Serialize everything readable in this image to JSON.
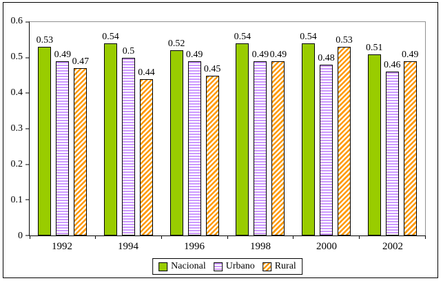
{
  "chart_data": {
    "type": "bar",
    "title": "",
    "xlabel": "",
    "ylabel": "",
    "categories": [
      "1992",
      "1994",
      "1996",
      "1998",
      "2000",
      "2002"
    ],
    "series": [
      {
        "name": "Nacional",
        "pattern": "solid",
        "color": "#99CC00",
        "values": [
          0.53,
          0.54,
          0.52,
          0.54,
          0.54,
          0.51
        ],
        "labels": [
          "0.53",
          "0.54",
          "0.52",
          "0.54",
          "0.54",
          "0.51"
        ]
      },
      {
        "name": "Urbano",
        "pattern": "horizontal-stripes",
        "color": "#CC99FF",
        "values": [
          0.49,
          0.5,
          0.49,
          0.49,
          0.48,
          0.46
        ],
        "labels": [
          "0.49",
          "0.5",
          "0.49",
          "0.49",
          "0.48",
          "0.46"
        ]
      },
      {
        "name": "Rural",
        "pattern": "diagonal-stripes",
        "color": "#FF9900",
        "values": [
          0.47,
          0.44,
          0.45,
          0.49,
          0.53,
          0.49
        ],
        "labels": [
          "0.47",
          "0.44",
          "0.45",
          "0.49",
          "0.53",
          "0.49"
        ]
      }
    ],
    "ylim": [
      0,
      0.6
    ],
    "yticks": [
      "0",
      "0.1",
      "0.2",
      "0.3",
      "0.4",
      "0.5",
      "0.6"
    ],
    "grid": false,
    "legend_position": "bottom",
    "axis_color": "#000000",
    "gridline_color": "#909090",
    "bar_border_color": "#000000",
    "background_color": "#FFFFFF"
  }
}
